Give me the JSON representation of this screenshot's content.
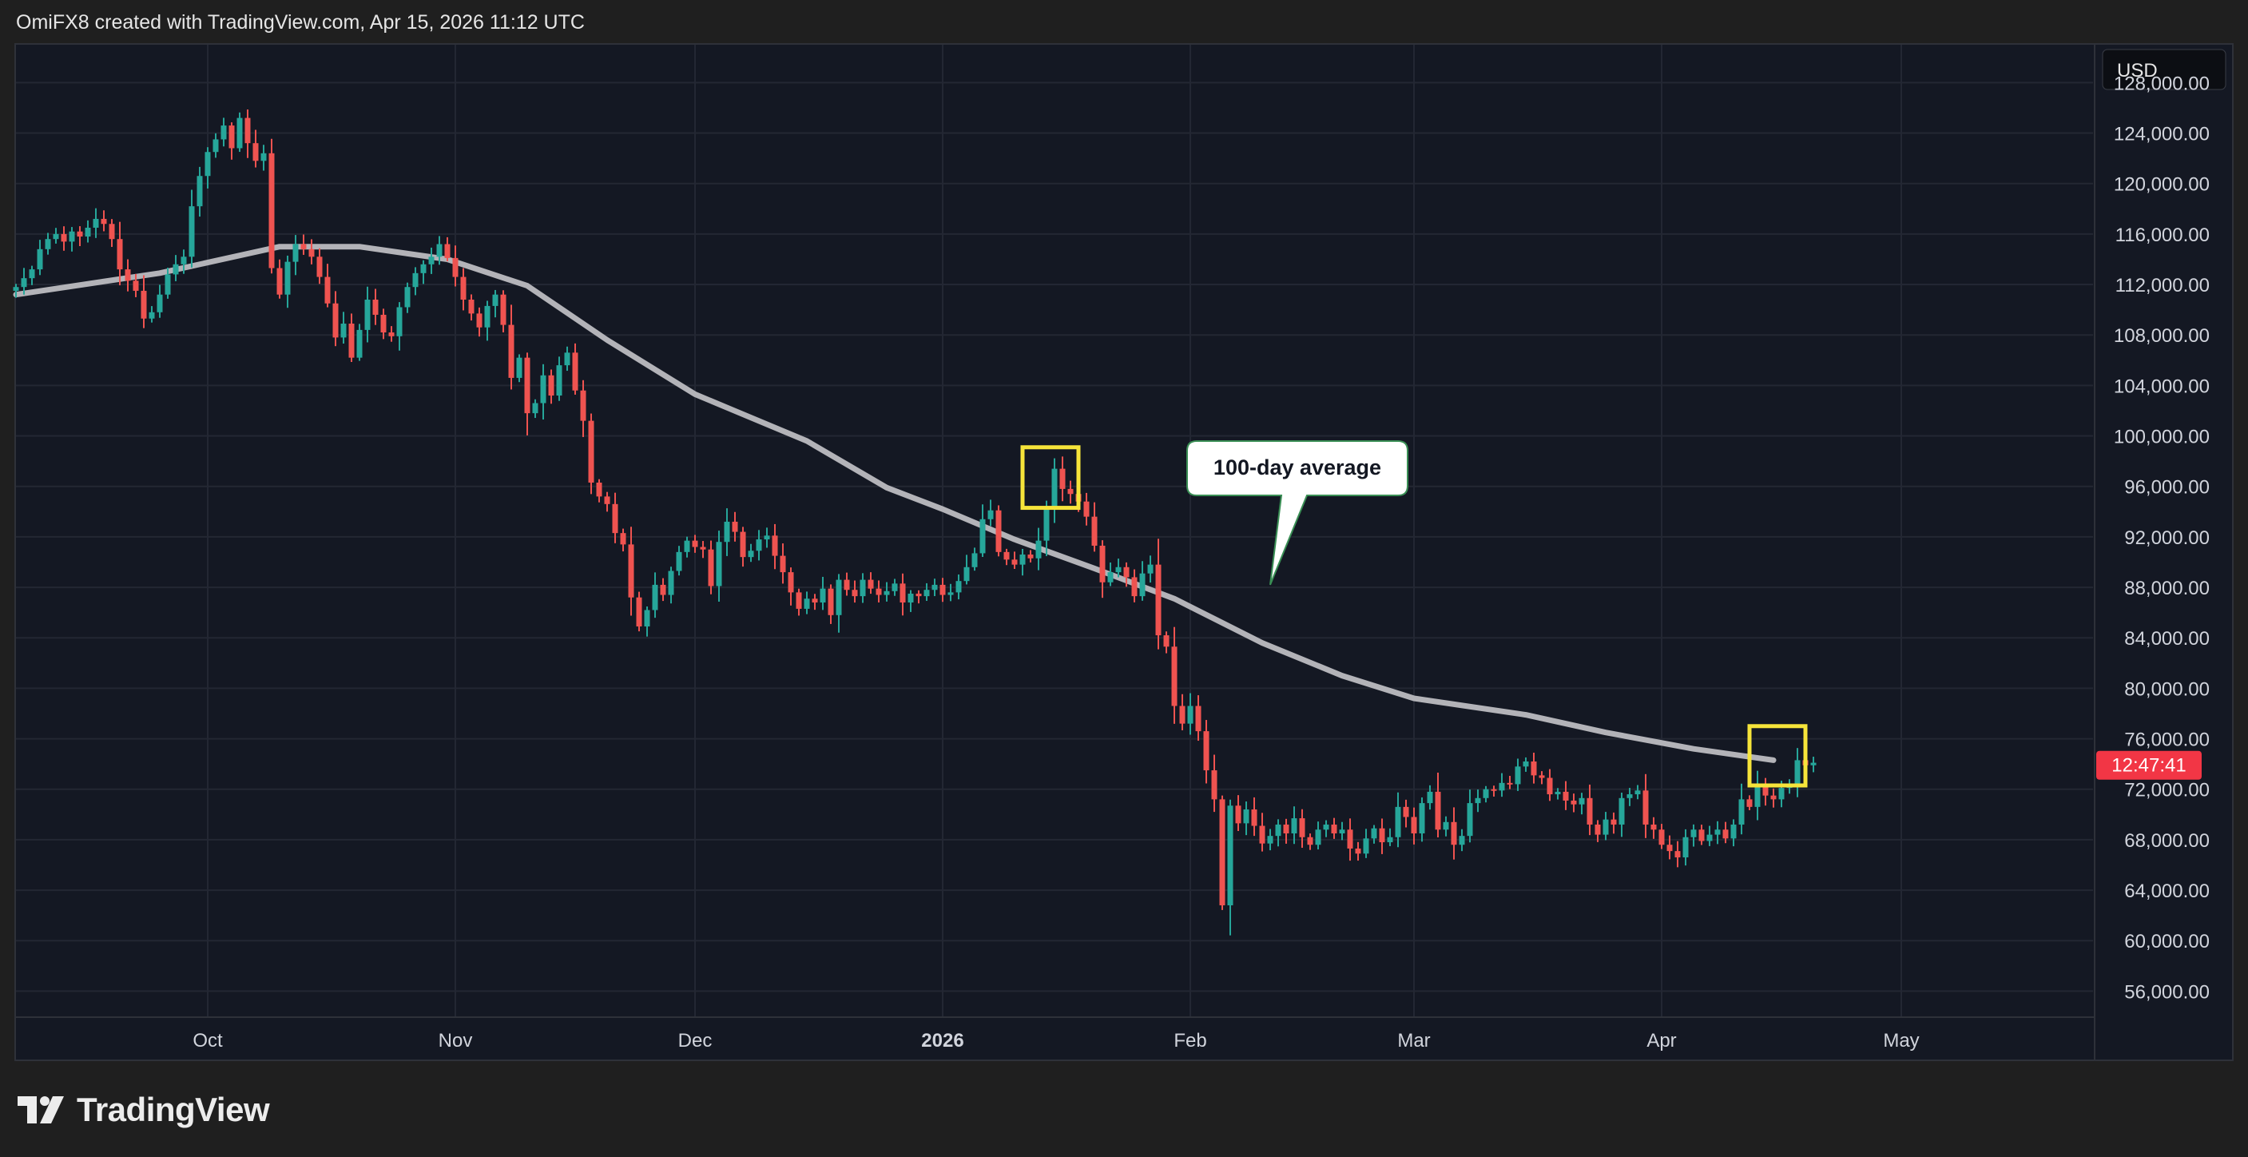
{
  "header": {
    "attribution": "OmiFX8 created with TradingView.com, Apr 15, 2026 11:12 UTC"
  },
  "footer": {
    "brand": "TradingView"
  },
  "colors": {
    "background": "#141823",
    "grid": "#232733",
    "up_candle": "#26a69a",
    "down_candle": "#ef5350",
    "moving_average": "#b3b3b8",
    "highlight_box": "#f6e43a",
    "price_badge": "#f23645"
  },
  "chart_data": {
    "type": "candlestick",
    "currency": "USD",
    "interval": "1D",
    "x_tick_labels": [
      {
        "label": "Oct",
        "date": "2025-10-01"
      },
      {
        "label": "Nov",
        "date": "2025-11-01"
      },
      {
        "label": "Dec",
        "date": "2025-12-01"
      },
      {
        "label": "2026",
        "date": "2026-01-01"
      },
      {
        "label": "Feb",
        "date": "2026-02-01"
      },
      {
        "label": "Mar",
        "date": "2026-03-01"
      },
      {
        "label": "Apr",
        "date": "2026-04-01"
      },
      {
        "label": "May",
        "date": "2026-05-01"
      }
    ],
    "y_tick_labels": [
      "128,000.00",
      "124,000.00",
      "120,000.00",
      "116,000.00",
      "112,000.00",
      "108,000.00",
      "104,000.00",
      "100,000.00",
      "96,000.00",
      "92,000.00",
      "88,000.00",
      "84,000.00",
      "80,000.00",
      "76,000.00",
      "72,000.00",
      "68,000.00",
      "64,000.00",
      "60,000.00",
      "56,000.00"
    ],
    "y_ticks": [
      128000,
      124000,
      120000,
      116000,
      112000,
      108000,
      104000,
      100000,
      96000,
      92000,
      88000,
      84000,
      80000,
      76000,
      72000,
      68000,
      64000,
      60000,
      56000
    ],
    "ylim": [
      54000,
      131000
    ],
    "xlim": [
      "2025-09-07",
      "2026-05-25"
    ],
    "close_series": {
      "start_date": "2025-09-07",
      "values": [
        111800,
        112500,
        113200,
        114800,
        115600,
        116000,
        115400,
        116200,
        115800,
        116500,
        117200,
        116800,
        115600,
        113200,
        112300,
        111500,
        109300,
        109800,
        111200,
        112800,
        113600,
        114200,
        118200,
        120600,
        122500,
        123500,
        124600,
        122800,
        125200,
        123200,
        121800,
        122400,
        113300,
        111200,
        113800,
        115200,
        114800,
        114200,
        112600,
        110500,
        107800,
        108900,
        106200,
        108400,
        110800,
        109600,
        108200,
        107900,
        110200,
        111800,
        112900,
        113600,
        114200,
        115200,
        114100,
        112600,
        110800,
        109700,
        108600,
        110300,
        111200,
        108800,
        104600,
        106200,
        101800,
        102600,
        104800,
        103200,
        105600,
        106600,
        103600,
        101200,
        96300,
        95200,
        94600,
        92300,
        91400,
        87200,
        84900,
        86200,
        88200,
        87400,
        89300,
        90800,
        91700,
        91200,
        91000,
        88100,
        91600,
        93200,
        92400,
        90400,
        90900,
        91800,
        92100,
        90500,
        89200,
        87600,
        86300,
        87100,
        86800,
        87900,
        85800,
        88600,
        87800,
        87300,
        88600,
        87900,
        87400,
        87700,
        88300,
        86800,
        87500,
        87300,
        87800,
        88200,
        87400,
        87600,
        88500,
        89600,
        90700,
        93400,
        94100,
        90800,
        90200,
        89800,
        90600,
        90300,
        91700,
        94300,
        97400,
        95800,
        95400,
        94800,
        93600,
        91300,
        88400,
        89200,
        89600,
        88800,
        87300,
        89100,
        89800,
        84200,
        83300,
        78600,
        77200,
        78600,
        76600,
        73500,
        71200,
        62800,
        70700,
        69300,
        70400,
        69100,
        67700,
        68300,
        69200,
        68500,
        69700,
        68200,
        67600,
        68800,
        69200,
        68500,
        68800,
        67300,
        66900,
        68100,
        68900,
        67800,
        68200,
        70600,
        69800,
        68500,
        70900,
        71800,
        68800,
        69400,
        67600,
        68300,
        70900,
        71300,
        72000,
        71900,
        72500,
        72400,
        73800,
        74200,
        73100,
        72900,
        71600,
        71800,
        71100,
        70800,
        71300,
        69200,
        68400,
        69600,
        69200,
        71300,
        71600,
        71900,
        69200,
        68800,
        67600,
        67100,
        66600,
        68200,
        68800,
        67900,
        68400,
        68800,
        68100,
        69200,
        71200,
        70600,
        72400,
        71500,
        71200,
        72100,
        72400,
        74300,
        73900,
        74100
      ]
    },
    "series": [
      {
        "name": "100-day average",
        "type": "line",
        "points": [
          [
            "2025-09-07",
            111200
          ],
          [
            "2025-09-25",
            112900
          ],
          [
            "2025-10-10",
            115000
          ],
          [
            "2025-10-20",
            115000
          ],
          [
            "2025-10-31",
            114000
          ],
          [
            "2025-11-10",
            111900
          ],
          [
            "2025-11-20",
            107600
          ],
          [
            "2025-12-01",
            103300
          ],
          [
            "2025-12-15",
            99600
          ],
          [
            "2025-12-25",
            95900
          ],
          [
            "2026-01-01",
            94200
          ],
          [
            "2026-01-10",
            91800
          ],
          [
            "2026-01-20",
            89500
          ],
          [
            "2026-01-30",
            87100
          ],
          [
            "2026-02-10",
            83600
          ],
          [
            "2026-02-20",
            81000
          ],
          [
            "2026-03-01",
            79200
          ],
          [
            "2026-03-15",
            77900
          ],
          [
            "2026-03-25",
            76500
          ],
          [
            "2026-04-05",
            75200
          ],
          [
            "2026-04-15",
            74300
          ]
        ]
      }
    ],
    "annotations": {
      "callout_text": "100-day average",
      "callout_pointer": {
        "date": "2026-02-11",
        "value": 88200
      },
      "highlight_boxes": [
        {
          "date_from": "2026-01-11",
          "date_to": "2026-01-18",
          "value_from": 94300,
          "value_to": 99100
        },
        {
          "date_from": "2026-04-12",
          "date_to": "2026-04-19",
          "value_from": 72300,
          "value_to": 77000
        }
      ]
    },
    "current_price_badge": {
      "text": "12:47:41",
      "value": 73900
    }
  }
}
